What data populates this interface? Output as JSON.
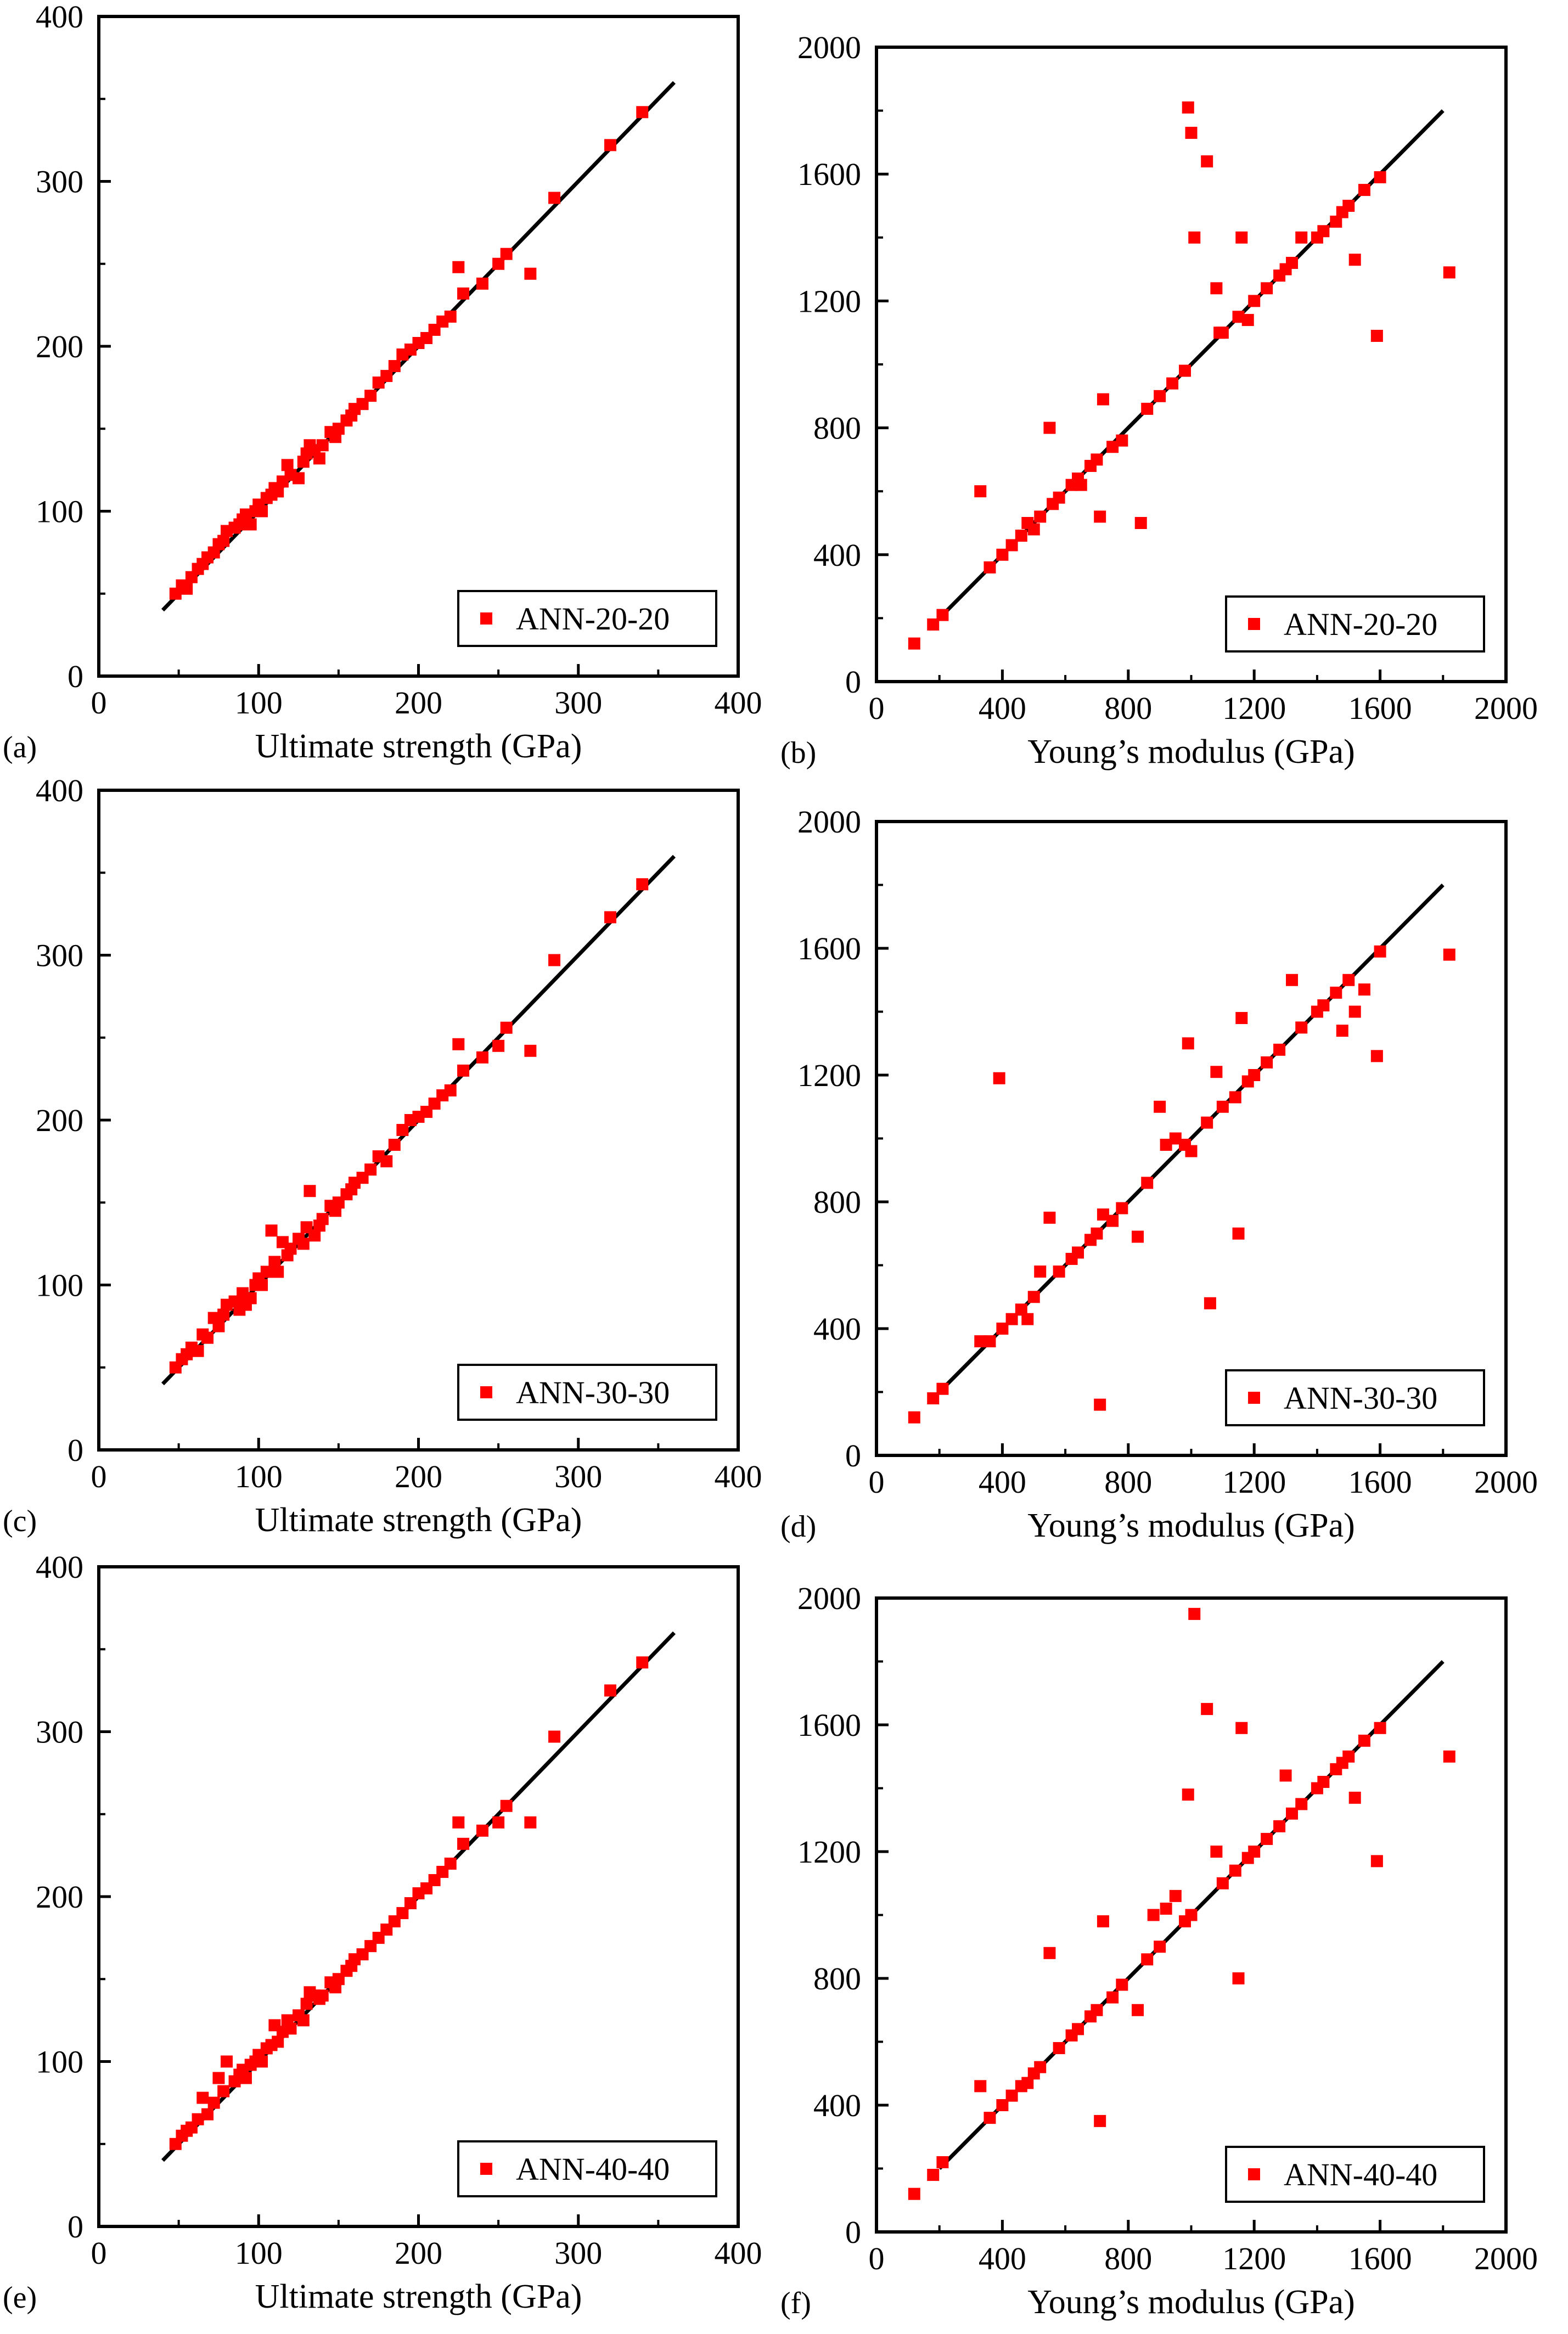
{
  "colors": {
    "points": "#ff0000",
    "fit_line": "#000000",
    "frame": "#000000",
    "background": "#ffffff"
  },
  "chart_data": [
    {
      "id": "a",
      "panel_label": "(a)",
      "type": "scatter",
      "title": "",
      "xlabel": "Ultimate strength (GPa)",
      "ylabel": "",
      "xlim": [
        0,
        400
      ],
      "ylim": [
        0,
        400
      ],
      "xticks": [
        0,
        100,
        200,
        300,
        400
      ],
      "yticks": [
        0,
        100,
        200,
        300,
        400
      ],
      "legend": "ANN-20-20",
      "legend_position": "bottom-right",
      "reference_line": [
        [
          40,
          40
        ],
        [
          360,
          360
        ]
      ],
      "series": [
        {
          "name": "ANN-20-20",
          "x": [
            48,
            52,
            55,
            58,
            62,
            65,
            68,
            72,
            75,
            78,
            80,
            85,
            88,
            90,
            92,
            95,
            98,
            100,
            102,
            105,
            108,
            110,
            112,
            115,
            118,
            120,
            125,
            128,
            130,
            132,
            135,
            138,
            140,
            145,
            148,
            150,
            155,
            158,
            160,
            165,
            170,
            175,
            180,
            185,
            190,
            195,
            200,
            205,
            210,
            215,
            220,
            225,
            228,
            240,
            250,
            255,
            270,
            285,
            320,
            340
          ],
          "y": [
            50,
            55,
            53,
            60,
            65,
            68,
            72,
            75,
            80,
            82,
            88,
            90,
            92,
            95,
            98,
            92,
            100,
            104,
            100,
            108,
            110,
            114,
            112,
            118,
            128,
            122,
            120,
            130,
            135,
            140,
            137,
            132,
            140,
            148,
            145,
            150,
            155,
            158,
            162,
            165,
            170,
            178,
            182,
            188,
            195,
            198,
            202,
            205,
            210,
            215,
            218,
            248,
            232,
            238,
            250,
            256,
            244,
            290,
            322,
            342
          ]
        }
      ]
    },
    {
      "id": "b",
      "panel_label": "(b)",
      "type": "scatter",
      "title": "",
      "xlabel": "Young’s modulus (GPa)",
      "ylabel": "",
      "xlim": [
        0,
        2000
      ],
      "ylim": [
        0,
        2000
      ],
      "xticks": [
        0,
        400,
        800,
        1200,
        1600,
        2000
      ],
      "yticks": [
        0,
        400,
        800,
        1200,
        1600,
        2000
      ],
      "legend": "ANN-20-20",
      "legend_position": "bottom-right",
      "reference_line": [
        [
          200,
          200
        ],
        [
          1800,
          1800
        ]
      ],
      "series": [
        {
          "name": "ANN-20-20",
          "x": [
            120,
            180,
            210,
            330,
            360,
            400,
            430,
            460,
            480,
            500,
            520,
            550,
            560,
            580,
            620,
            640,
            650,
            680,
            700,
            710,
            720,
            750,
            780,
            840,
            860,
            900,
            940,
            980,
            990,
            1000,
            1010,
            1050,
            1080,
            1090,
            1100,
            1150,
            1160,
            1180,
            1200,
            1240,
            1280,
            1300,
            1320,
            1350,
            1400,
            1420,
            1460,
            1480,
            1500,
            1520,
            1550,
            1590,
            1600,
            1820
          ],
          "y": [
            120,
            180,
            210,
            600,
            360,
            400,
            430,
            460,
            500,
            480,
            520,
            800,
            560,
            580,
            620,
            640,
            620,
            680,
            700,
            520,
            890,
            740,
            760,
            500,
            860,
            900,
            940,
            980,
            1810,
            1730,
            1400,
            1640,
            1240,
            1100,
            1100,
            1150,
            1400,
            1140,
            1200,
            1240,
            1280,
            1300,
            1320,
            1400,
            1400,
            1420,
            1450,
            1480,
            1500,
            1330,
            1550,
            1090,
            1590,
            1290
          ]
        }
      ]
    },
    {
      "id": "c",
      "panel_label": "(c)",
      "type": "scatter",
      "title": "",
      "xlabel": "Ultimate strength (GPa)",
      "ylabel": "",
      "xlim": [
        0,
        400
      ],
      "ylim": [
        0,
        400
      ],
      "xticks": [
        0,
        100,
        200,
        300,
        400
      ],
      "yticks": [
        0,
        100,
        200,
        300,
        400
      ],
      "legend": "ANN-30-30",
      "legend_position": "bottom-right",
      "reference_line": [
        [
          40,
          40
        ],
        [
          360,
          360
        ]
      ],
      "series": [
        {
          "name": "ANN-30-30",
          "x": [
            48,
            52,
            55,
            58,
            62,
            65,
            68,
            72,
            75,
            78,
            80,
            85,
            88,
            90,
            92,
            95,
            98,
            100,
            102,
            105,
            108,
            110,
            112,
            115,
            118,
            120,
            125,
            128,
            130,
            132,
            135,
            138,
            140,
            145,
            148,
            150,
            155,
            158,
            160,
            165,
            170,
            175,
            180,
            185,
            190,
            195,
            200,
            205,
            210,
            215,
            220,
            225,
            228,
            240,
            250,
            255,
            270,
            285,
            320,
            340
          ],
          "y": [
            50,
            55,
            58,
            62,
            60,
            70,
            68,
            80,
            75,
            82,
            88,
            90,
            85,
            95,
            88,
            92,
            100,
            104,
            100,
            108,
            133,
            114,
            108,
            126,
            118,
            122,
            128,
            125,
            135,
            157,
            130,
            136,
            140,
            148,
            145,
            150,
            155,
            158,
            162,
            165,
            170,
            178,
            175,
            185,
            194,
            200,
            202,
            205,
            210,
            215,
            218,
            246,
            230,
            238,
            245,
            256,
            242,
            297,
            323,
            343
          ]
        }
      ]
    },
    {
      "id": "d",
      "panel_label": "(d)",
      "type": "scatter",
      "title": "",
      "xlabel": "Young’s modulus (GPa)",
      "ylabel": "",
      "xlim": [
        0,
        2000
      ],
      "ylim": [
        0,
        2000
      ],
      "xticks": [
        0,
        400,
        800,
        1200,
        1600,
        2000
      ],
      "yticks": [
        0,
        400,
        800,
        1200,
        1600,
        2000
      ],
      "legend": "ANN-30-30",
      "legend_position": "bottom-right",
      "reference_line": [
        [
          200,
          200
        ],
        [
          1800,
          1800
        ]
      ],
      "series": [
        {
          "name": "ANN-30-30",
          "x": [
            120,
            180,
            210,
            330,
            360,
            390,
            400,
            430,
            460,
            480,
            500,
            520,
            550,
            580,
            620,
            640,
            680,
            700,
            710,
            720,
            750,
            780,
            830,
            860,
            900,
            920,
            950,
            980,
            990,
            1000,
            1050,
            1060,
            1080,
            1100,
            1140,
            1150,
            1160,
            1180,
            1200,
            1240,
            1280,
            1320,
            1350,
            1400,
            1420,
            1460,
            1480,
            1500,
            1520,
            1550,
            1590,
            1600,
            1820
          ],
          "y": [
            120,
            180,
            210,
            360,
            360,
            1190,
            400,
            430,
            460,
            430,
            500,
            580,
            750,
            580,
            620,
            640,
            680,
            700,
            160,
            760,
            740,
            780,
            690,
            860,
            1100,
            980,
            1000,
            980,
            1300,
            960,
            1050,
            480,
            1210,
            1100,
            1130,
            700,
            1380,
            1180,
            1200,
            1240,
            1280,
            1500,
            1350,
            1400,
            1420,
            1460,
            1340,
            1500,
            1400,
            1470,
            1260,
            1590,
            1580
          ]
        }
      ]
    },
    {
      "id": "e",
      "panel_label": "(e)",
      "type": "scatter",
      "title": "",
      "xlabel": "Ultimate strength (GPa)",
      "ylabel": "",
      "xlim": [
        0,
        400
      ],
      "ylim": [
        0,
        400
      ],
      "xticks": [
        0,
        100,
        200,
        300,
        400
      ],
      "yticks": [
        0,
        100,
        200,
        300,
        400
      ],
      "legend": "ANN-40-40",
      "legend_position": "bottom-right",
      "reference_line": [
        [
          40,
          40
        ],
        [
          360,
          360
        ]
      ],
      "series": [
        {
          "name": "ANN-40-40",
          "x": [
            48,
            52,
            55,
            58,
            62,
            65,
            68,
            72,
            75,
            78,
            80,
            85,
            88,
            90,
            92,
            95,
            98,
            100,
            102,
            105,
            108,
            110,
            112,
            115,
            118,
            120,
            125,
            128,
            130,
            132,
            135,
            138,
            140,
            145,
            148,
            150,
            155,
            158,
            160,
            165,
            170,
            175,
            180,
            185,
            190,
            195,
            200,
            205,
            210,
            215,
            220,
            225,
            228,
            240,
            250,
            255,
            270,
            285,
            320,
            340
          ],
          "y": [
            50,
            55,
            58,
            60,
            65,
            78,
            68,
            75,
            90,
            82,
            100,
            88,
            92,
            95,
            90,
            98,
            100,
            104,
            100,
            108,
            110,
            122,
            112,
            118,
            125,
            120,
            128,
            125,
            135,
            142,
            140,
            138,
            140,
            148,
            145,
            150,
            155,
            158,
            162,
            165,
            170,
            175,
            180,
            185,
            190,
            196,
            202,
            205,
            210,
            215,
            220,
            245,
            232,
            240,
            245,
            255,
            245,
            297,
            325,
            342
          ]
        }
      ]
    },
    {
      "id": "f",
      "panel_label": "(f)",
      "type": "scatter",
      "title": "",
      "xlabel": "Young’s modulus (GPa)",
      "ylabel": "",
      "xlim": [
        0,
        2000
      ],
      "ylim": [
        0,
        2000
      ],
      "xticks": [
        0,
        400,
        800,
        1200,
        1600,
        2000
      ],
      "yticks": [
        0,
        400,
        800,
        1200,
        1600,
        2000
      ],
      "legend": "ANN-40-40",
      "legend_position": "bottom-right",
      "reference_line": [
        [
          200,
          200
        ],
        [
          1800,
          1800
        ]
      ],
      "series": [
        {
          "name": "ANN-40-40",
          "x": [
            120,
            180,
            210,
            330,
            360,
            400,
            430,
            460,
            480,
            500,
            520,
            550,
            580,
            620,
            640,
            680,
            700,
            710,
            720,
            750,
            780,
            830,
            860,
            880,
            900,
            920,
            950,
            980,
            990,
            1000,
            1010,
            1050,
            1080,
            1100,
            1140,
            1150,
            1160,
            1180,
            1200,
            1240,
            1280,
            1300,
            1320,
            1350,
            1400,
            1420,
            1460,
            1480,
            1500,
            1520,
            1550,
            1590,
            1600,
            1820
          ],
          "y": [
            120,
            180,
            220,
            460,
            360,
            400,
            430,
            460,
            470,
            500,
            520,
            880,
            580,
            620,
            640,
            680,
            700,
            350,
            980,
            740,
            780,
            700,
            860,
            1000,
            900,
            1020,
            1060,
            980,
            1380,
            1000,
            1950,
            1650,
            1200,
            1100,
            1140,
            800,
            1590,
            1180,
            1200,
            1240,
            1280,
            1440,
            1320,
            1350,
            1400,
            1420,
            1460,
            1480,
            1500,
            1370,
            1550,
            1170,
            1590,
            1500
          ]
        }
      ]
    }
  ]
}
